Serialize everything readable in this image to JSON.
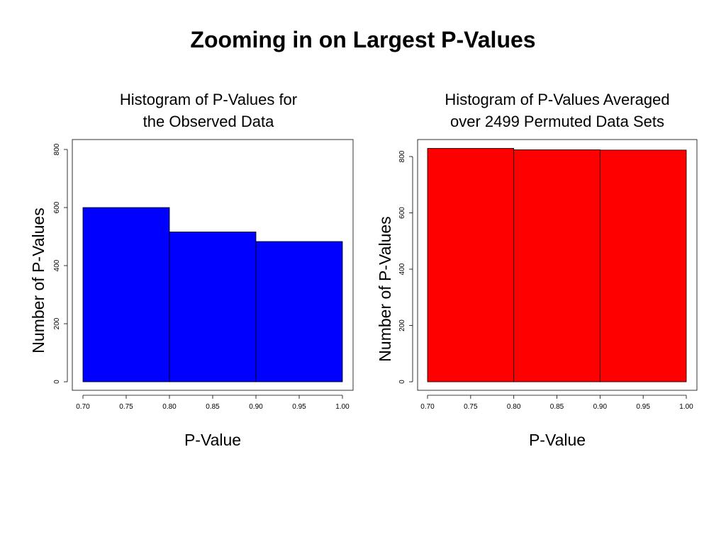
{
  "slide": {
    "title": "Zooming in on Largest P-Values"
  },
  "chart_data": [
    {
      "type": "bar",
      "title_lines": [
        "Histogram of P-Values for",
        "the Observed Data"
      ],
      "xlabel": "P-Value",
      "ylabel": "Number of P-Values",
      "bin_edges": [
        0.7,
        0.8,
        0.9,
        1.0
      ],
      "values": [
        600,
        516,
        483
      ],
      "xlim": [
        0.7,
        1.0
      ],
      "ylim": [
        0,
        800
      ],
      "x_ticks": [
        "0.70",
        "0.75",
        "0.80",
        "0.85",
        "0.90",
        "0.95",
        "1.00"
      ],
      "y_ticks": [
        "0",
        "200",
        "400",
        "600",
        "800"
      ],
      "color": "#0000ff",
      "grid": false
    },
    {
      "type": "bar",
      "title_lines": [
        "Histogram of P-Values Averaged",
        "over 2499 Permuted Data Sets"
      ],
      "xlabel": "P-Value",
      "ylabel": "Number of P-Values",
      "bin_edges": [
        0.7,
        0.8,
        0.9,
        1.0
      ],
      "values": [
        829,
        824,
        823
      ],
      "xlim": [
        0.7,
        1.0
      ],
      "ylim": [
        0,
        800
      ],
      "x_ticks": [
        "0.70",
        "0.75",
        "0.80",
        "0.85",
        "0.90",
        "0.95",
        "1.00"
      ],
      "y_ticks": [
        "0",
        "200",
        "400",
        "600",
        "800"
      ],
      "color": "#ff0000",
      "grid": false
    }
  ]
}
